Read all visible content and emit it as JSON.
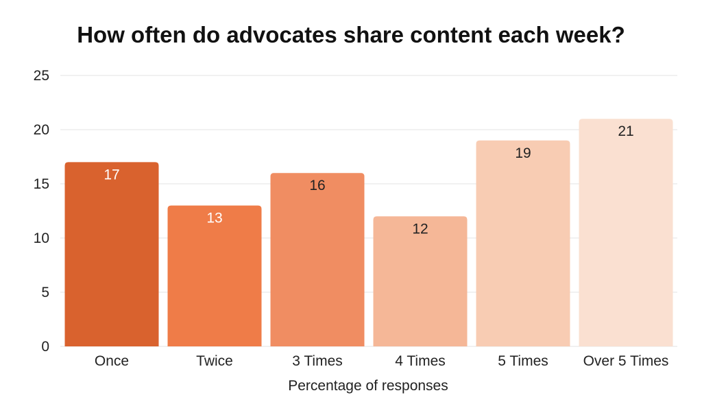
{
  "chart_data": {
    "type": "bar",
    "title": "How often do advocates share content each week?",
    "xlabel": "Percentage of responses",
    "ylabel": "",
    "categories": [
      "Once",
      "Twice",
      "3 Times",
      "4 Times",
      "5 Times",
      "Over 5 Times"
    ],
    "values": [
      17,
      13,
      16,
      12,
      19,
      21
    ],
    "ylim": [
      0,
      25
    ],
    "yticks": [
      "0",
      "5",
      "10",
      "15",
      "20",
      "25"
    ],
    "grid": true,
    "bar_colors": [
      "#D9622E",
      "#EF7C48",
      "#F08D62",
      "#F5B797",
      "#F8CCB3",
      "#FAE0D1"
    ],
    "label_colors": [
      "#ffffff",
      "#ffffff",
      "#222222",
      "#222222",
      "#222222",
      "#222222"
    ]
  }
}
